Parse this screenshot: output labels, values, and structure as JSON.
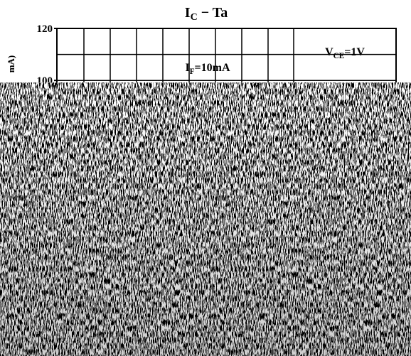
{
  "chart_data": {
    "type": "line",
    "title": {
      "base": "I",
      "sub": "C",
      "rest": " − Ta"
    },
    "y_label": "mA)",
    "ylim": [
      96.5,
      120
    ],
    "yticks": [
      100,
      120
    ],
    "ygrid": [
      110
    ],
    "grid": true,
    "annotations": [
      {
        "base": "I",
        "sub": "F",
        "rest": "=10mA"
      },
      {
        "base": "V",
        "sub": "CE",
        "rest": "=1V"
      }
    ]
  }
}
